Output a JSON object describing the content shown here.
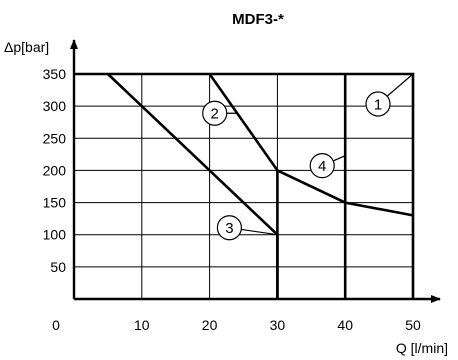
{
  "chart_data": {
    "type": "line",
    "title": "MDF3-*",
    "xlabel": "Q [l/min]",
    "ylabel": "Δp[bar]",
    "xlim": [
      0,
      50
    ],
    "ylim": [
      0,
      350
    ],
    "x_ticks": [
      "0",
      "10",
      "20",
      "30",
      "40",
      "50"
    ],
    "y_ticks": [
      "50",
      "100",
      "150",
      "200",
      "250",
      "300",
      "350"
    ],
    "grid": true,
    "series": [
      {
        "name": "1",
        "points": [
          [
            0,
            350
          ],
          [
            50,
            350
          ],
          [
            50,
            0
          ]
        ]
      },
      {
        "name": "2",
        "points": [
          [
            20,
            350
          ],
          [
            30,
            200
          ],
          [
            30,
            0
          ]
        ]
      },
      {
        "name": "3",
        "points": [
          [
            5,
            350
          ],
          [
            20,
            200
          ],
          [
            30,
            100
          ],
          [
            30,
            0
          ]
        ]
      },
      {
        "name": "4",
        "points": [
          [
            30,
            200
          ],
          [
            40,
            150
          ],
          [
            50,
            130
          ]
        ]
      }
    ],
    "extra_vertical_lines": [
      40
    ]
  }
}
